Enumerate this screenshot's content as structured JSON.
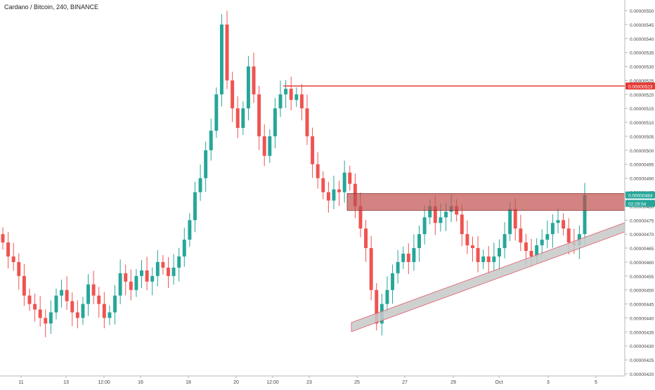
{
  "chart_data": {
    "type": "candlestick",
    "title": "Cardano / Bitcoin, 240, BINANCE",
    "ylim": [
      4.2e-06,
      5.5e-06
    ],
    "y_ticks": [
      "0.00000550",
      "0.00000545",
      "0.00000540",
      "0.00000535",
      "0.00000530",
      "0.00000525",
      "0.00000520",
      "0.00000515",
      "0.00000510",
      "0.00000505",
      "0.00000500",
      "0.00000495",
      "0.00000490",
      "0.00000485",
      "0.00000480",
      "0.00000475",
      "0.00000470",
      "0.00000465",
      "0.00000460",
      "0.00000455",
      "0.00000450",
      "0.00000445",
      "0.00000440",
      "0.00000435",
      "0.00000430",
      "0.00000425",
      "0.00000420"
    ],
    "x_ticks": [
      "11",
      "13",
      "12:00",
      "16",
      "18",
      "20",
      "12:00",
      "23",
      "25",
      "27",
      "29",
      "Oct",
      "3",
      "5"
    ],
    "price_labels": [
      {
        "text": "0.00000523",
        "value": 5.23e-06,
        "color": "#e53935"
      },
      {
        "text": "0.00000484",
        "value": 4.84e-06,
        "color": "#26a69a"
      },
      {
        "text": "02:29:54",
        "value": 4.81e-06,
        "color": "#26a69a"
      }
    ],
    "resistance_line": {
      "value": 5.23e-06,
      "color": "#e53935"
    },
    "resistance_zone": {
      "top": 4.845e-06,
      "bottom": 4.785e-06,
      "color": "#c0504d"
    },
    "trend_channel": {
      "color": "#c7c9c9",
      "border": "#e05a6a"
    },
    "colors": {
      "up": "#26a69a",
      "down": "#ef5350"
    },
    "candles_close": [
      4.67e-06,
      4.62e-06,
      4.6e-06,
      4.55e-06,
      4.48e-06,
      4.45e-06,
      4.43e-06,
      4.4e-06,
      4.38e-06,
      4.42e-06,
      4.48e-06,
      4.5e-06,
      4.46e-06,
      4.42e-06,
      4.4e-06,
      4.45e-06,
      4.52e-06,
      4.48e-06,
      4.45e-06,
      4.4e-06,
      4.42e-06,
      4.48e-06,
      4.56e-06,
      4.53e-06,
      4.5e-06,
      4.55e-06,
      4.57e-06,
      4.53e-06,
      4.55e-06,
      4.6e-06,
      4.58e-06,
      4.55e-06,
      4.58e-06,
      4.62e-06,
      4.68e-06,
      4.75e-06,
      4.85e-06,
      4.9e-06,
      5e-06,
      5.07e-06,
      5.2e-06,
      5.45e-06,
      5.25e-06,
      5.15e-06,
      5.08e-06,
      5.15e-06,
      5.3e-06,
      5.2e-06,
      5.05e-06,
      4.98e-06,
      5.05e-06,
      5.15e-06,
      5.2e-06,
      5.22e-06,
      5.18e-06,
      5.2e-06,
      5.15e-06,
      5.05e-06,
      4.95e-06,
      4.9e-06,
      4.85e-06,
      4.82e-06,
      4.86e-06,
      4.85e-06,
      4.92e-06,
      4.88e-06,
      4.8e-06,
      4.72e-06,
      4.65e-06,
      4.5e-06,
      4.38e-06,
      4.45e-06,
      4.5e-06,
      4.56e-06,
      4.6e-06,
      4.63e-06,
      4.6e-06,
      4.65e-06,
      4.7e-06,
      4.76e-06,
      4.8e-06,
      4.74e-06,
      4.76e-06,
      4.78e-06,
      4.8e-06,
      4.77e-06,
      4.7e-06,
      4.66e-06,
      4.65e-06,
      4.6e-06,
      4.62e-06,
      4.6e-06,
      4.62e-06,
      4.65e-06,
      4.7e-06,
      4.79e-06,
      4.72e-06,
      4.67e-06,
      4.64e-06,
      4.62e-06,
      4.66e-06,
      4.68e-06,
      4.7e-06,
      4.74e-06,
      4.75e-06,
      4.72e-06,
      4.67e-06,
      4.66e-06,
      4.7e-06,
      4.84e-06
    ]
  }
}
